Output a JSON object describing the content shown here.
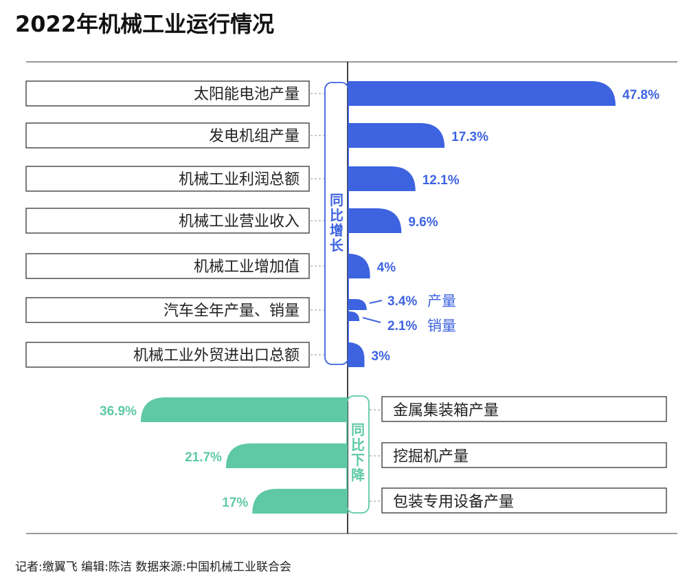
{
  "title": "2022年机械工业运行情况",
  "footer": "记者:缴翼飞  编辑:陈洁   数据来源:中国机械工业联合会",
  "colors": {
    "increase": "#3d63e0",
    "decrease": "#5ec9a4"
  },
  "chart_data": {
    "type": "bar",
    "groups": [
      {
        "name": "同比增长",
        "items": [
          {
            "label": "太阳能电池产量",
            "value": 47.8,
            "value_label": "47.8%"
          },
          {
            "label": "发电机组产量",
            "value": 17.3,
            "value_label": "17.3%"
          },
          {
            "label": "机械工业利润总额",
            "value": 12.1,
            "value_label": "12.1%"
          },
          {
            "label": "机械工业营业收入",
            "value": 9.6,
            "value_label": "9.6%"
          },
          {
            "label": "机械工业增加值",
            "value": 4,
            "value_label": "4%"
          },
          {
            "label": "汽车全年产量、销量",
            "sub": [
              {
                "name": "产量",
                "value": 3.4,
                "value_label": "3.4%"
              },
              {
                "name": "销量",
                "value": 2.1,
                "value_label": "2.1%"
              }
            ]
          },
          {
            "label": "机械工业外贸进出口总额",
            "value": 3,
            "value_label": "3%"
          }
        ]
      },
      {
        "name": "同比下降",
        "items": [
          {
            "label": "金属集装箱产量",
            "value": 36.9,
            "value_label": "36.9%"
          },
          {
            "label": "挖掘机产量",
            "value": 21.7,
            "value_label": "21.7%"
          },
          {
            "label": "包装专用设备产量",
            "value": 17,
            "value_label": "17%"
          }
        ]
      }
    ]
  }
}
